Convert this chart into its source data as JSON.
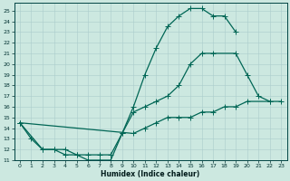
{
  "xlabel": "Humidex (Indice chaleur)",
  "bg_color": "#cce8e0",
  "grid_color": "#aacccc",
  "line_color": "#006655",
  "xlim": [
    -0.5,
    23.5
  ],
  "ylim": [
    11,
    25.7
  ],
  "xticks": [
    0,
    1,
    2,
    3,
    4,
    5,
    6,
    7,
    8,
    9,
    10,
    11,
    12,
    13,
    14,
    15,
    16,
    17,
    18,
    19,
    20,
    21,
    22,
    23
  ],
  "yticks": [
    11,
    12,
    13,
    14,
    15,
    16,
    17,
    18,
    19,
    20,
    21,
    22,
    23,
    24,
    25
  ],
  "series1_x": [
    0,
    1,
    2,
    3,
    4,
    5,
    6,
    7,
    8,
    9,
    10,
    11,
    12,
    13,
    14,
    15,
    16,
    17,
    18,
    19
  ],
  "series1_y": [
    14.5,
    13.0,
    12.0,
    12.0,
    11.5,
    11.5,
    11.0,
    11.0,
    11.0,
    13.5,
    16.0,
    19.0,
    21.5,
    23.5,
    24.5,
    25.2,
    25.2,
    24.5,
    24.5,
    23.0
  ],
  "series2_x": [
    0,
    2,
    3,
    4,
    5,
    6,
    7,
    8,
    9,
    10,
    11,
    12,
    13,
    14,
    15,
    16,
    17,
    19,
    20,
    21,
    22
  ],
  "series2_y": [
    14.5,
    12.0,
    12.0,
    12.0,
    11.5,
    11.5,
    11.5,
    11.5,
    13.5,
    15.5,
    16.0,
    16.5,
    17.0,
    18.0,
    20.0,
    21.0,
    21.0,
    21.0,
    19.0,
    17.0,
    16.5
  ],
  "series3_x": [
    0,
    10,
    11,
    12,
    13,
    14,
    15,
    16,
    17,
    18,
    19,
    20,
    22,
    23
  ],
  "series3_y": [
    14.5,
    13.5,
    14.0,
    14.5,
    15.0,
    15.0,
    15.0,
    15.5,
    15.5,
    16.0,
    16.0,
    16.5,
    16.5,
    16.5
  ]
}
